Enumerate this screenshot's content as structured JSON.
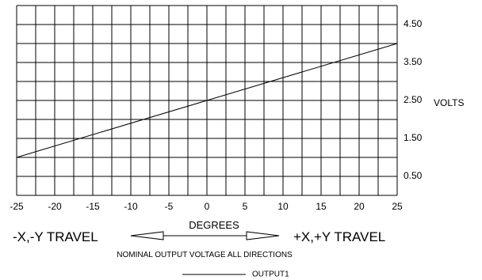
{
  "chart_data": {
    "type": "line",
    "xlabel": "DEGREES",
    "ylabel": "VOLTS",
    "xlim": [
      -25,
      25
    ],
    "ylim": [
      0,
      5
    ],
    "grid": true,
    "x_ticks": [
      "-25",
      "-20",
      "-15",
      "-10",
      "-5",
      "0",
      "5",
      "10",
      "15",
      "20",
      "25"
    ],
    "y_ticks": [
      {
        "value": 4.5,
        "label": "4.50"
      },
      {
        "value": 3.5,
        "label": "3.50"
      },
      {
        "value": 2.5,
        "label": "2.50"
      },
      {
        "value": 1.5,
        "label": "1.50"
      },
      {
        "value": 0.5,
        "label": "0.50"
      }
    ],
    "series": [
      {
        "name": "OUTPUT1",
        "x": [
          -25,
          25
        ],
        "y": [
          1.0,
          4.0
        ]
      }
    ],
    "legend_position": "bottom-center"
  },
  "annotations": {
    "left_travel": "-X,-Y TRAVEL",
    "right_travel": "+X,+Y TRAVEL",
    "subtitle": "NOMINAL OUTPUT VOLTAGE ALL DIRECTIONS"
  }
}
